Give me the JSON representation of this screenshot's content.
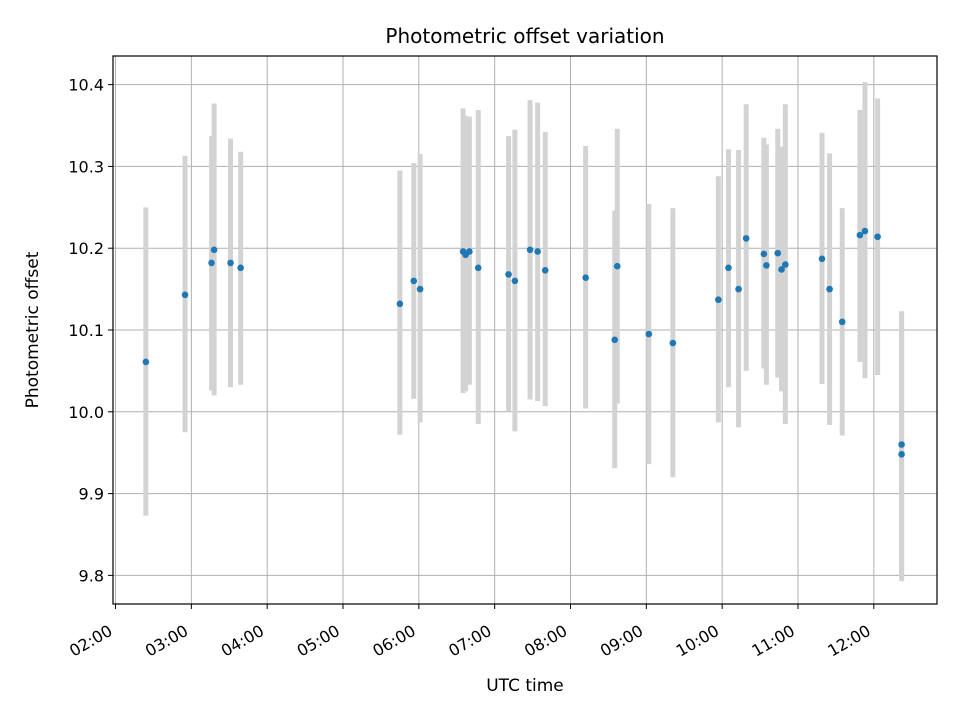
{
  "chart_data": {
    "type": "scatter",
    "title": "Photometric offset variation",
    "xlabel": "UTC time",
    "ylabel": "Photometric offset",
    "x_axis": {
      "kind": "time",
      "range": [
        "01:58",
        "12:50"
      ],
      "ticks": [
        "02:00",
        "03:00",
        "04:00",
        "05:00",
        "06:00",
        "07:00",
        "08:00",
        "09:00",
        "10:00",
        "11:00",
        "12:00"
      ]
    },
    "y_axis": {
      "range": [
        9.765,
        10.435
      ],
      "ticks": [
        "9.8",
        "9.9",
        "10.0",
        "10.1",
        "10.2",
        "10.3",
        "10.4"
      ]
    },
    "grid": true,
    "marker_color": "#1f77b4",
    "errorbar_color": "#d3d3d3",
    "points": [
      {
        "x": "02:24",
        "y": 10.061,
        "lo": 9.873,
        "hi": 10.25
      },
      {
        "x": "02:55",
        "y": 10.143,
        "lo": 9.975,
        "hi": 10.313
      },
      {
        "x": "03:16",
        "y": 10.182,
        "lo": 10.026,
        "hi": 10.337
      },
      {
        "x": "03:18",
        "y": 10.198,
        "lo": 10.02,
        "hi": 10.377
      },
      {
        "x": "03:31",
        "y": 10.182,
        "lo": 10.03,
        "hi": 10.334
      },
      {
        "x": "03:39",
        "y": 10.176,
        "lo": 10.033,
        "hi": 10.318
      },
      {
        "x": "05:45",
        "y": 10.132,
        "lo": 9.972,
        "hi": 10.295
      },
      {
        "x": "05:56",
        "y": 10.16,
        "lo": 10.016,
        "hi": 10.304
      },
      {
        "x": "06:01",
        "y": 10.15,
        "lo": 9.987,
        "hi": 10.315
      },
      {
        "x": "06:35",
        "y": 10.196,
        "lo": 10.023,
        "hi": 10.371
      },
      {
        "x": "06:37",
        "y": 10.192,
        "lo": 10.025,
        "hi": 10.362
      },
      {
        "x": "06:40",
        "y": 10.196,
        "lo": 10.033,
        "hi": 10.361
      },
      {
        "x": "06:47",
        "y": 10.176,
        "lo": 9.985,
        "hi": 10.369
      },
      {
        "x": "07:11",
        "y": 10.168,
        "lo": 10.0,
        "hi": 10.337
      },
      {
        "x": "07:16",
        "y": 10.16,
        "lo": 9.976,
        "hi": 10.345
      },
      {
        "x": "07:28",
        "y": 10.198,
        "lo": 10.015,
        "hi": 10.381
      },
      {
        "x": "07:34",
        "y": 10.196,
        "lo": 10.013,
        "hi": 10.378
      },
      {
        "x": "07:40",
        "y": 10.173,
        "lo": 10.007,
        "hi": 10.342
      },
      {
        "x": "08:12",
        "y": 10.164,
        "lo": 10.004,
        "hi": 10.325
      },
      {
        "x": "08:35",
        "y": 10.088,
        "lo": 9.931,
        "hi": 10.246
      },
      {
        "x": "08:37",
        "y": 10.178,
        "lo": 10.01,
        "hi": 10.346
      },
      {
        "x": "09:02",
        "y": 10.095,
        "lo": 9.936,
        "hi": 10.254
      },
      {
        "x": "09:21",
        "y": 10.084,
        "lo": 9.92,
        "hi": 10.249
      },
      {
        "x": "09:57",
        "y": 10.137,
        "lo": 9.987,
        "hi": 10.288
      },
      {
        "x": "10:05",
        "y": 10.176,
        "lo": 10.03,
        "hi": 10.321
      },
      {
        "x": "10:13",
        "y": 10.15,
        "lo": 9.981,
        "hi": 10.32
      },
      {
        "x": "10:19",
        "y": 10.212,
        "lo": 10.05,
        "hi": 10.376
      },
      {
        "x": "10:33",
        "y": 10.193,
        "lo": 10.053,
        "hi": 10.335
      },
      {
        "x": "10:35",
        "y": 10.179,
        "lo": 10.033,
        "hi": 10.327
      },
      {
        "x": "10:44",
        "y": 10.194,
        "lo": 10.042,
        "hi": 10.346
      },
      {
        "x": "10:47",
        "y": 10.174,
        "lo": 10.025,
        "hi": 10.324
      },
      {
        "x": "10:50",
        "y": 10.18,
        "lo": 9.985,
        "hi": 10.376
      },
      {
        "x": "11:19",
        "y": 10.187,
        "lo": 10.034,
        "hi": 10.341
      },
      {
        "x": "11:25",
        "y": 10.15,
        "lo": 9.984,
        "hi": 10.316
      },
      {
        "x": "11:35",
        "y": 10.11,
        "lo": 9.971,
        "hi": 10.249
      },
      {
        "x": "11:49",
        "y": 10.216,
        "lo": 10.061,
        "hi": 10.369
      },
      {
        "x": "11:53",
        "y": 10.221,
        "lo": 10.041,
        "hi": 10.403
      },
      {
        "x": "12:03",
        "y": 10.214,
        "lo": 10.045,
        "hi": 10.383
      },
      {
        "x": "12:22",
        "y": 9.96,
        "lo": 9.797,
        "hi": 10.123
      },
      {
        "x": "12:22",
        "y": 9.948,
        "lo": 9.793,
        "hi": 10.104
      }
    ]
  }
}
